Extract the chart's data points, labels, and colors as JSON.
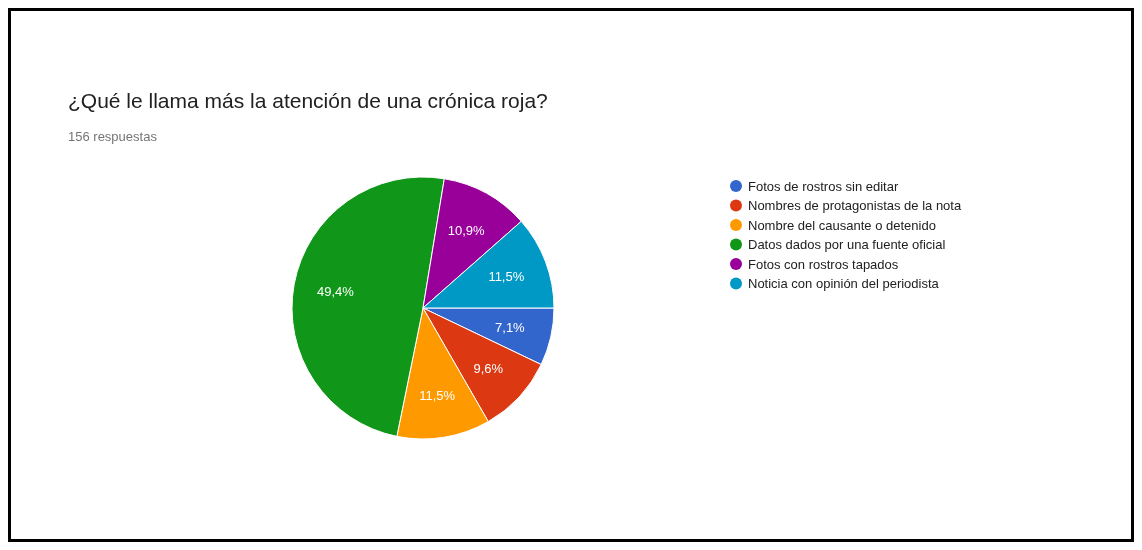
{
  "chart_data": {
    "type": "pie",
    "title": "¿Qué le llama más la atención de una crónica roja?",
    "subtitle": "156 respuestas",
    "categories": [
      "Fotos de rostros sin editar",
      "Nombres de protagonistas de la nota",
      "Nombre del causante o detenido",
      "Datos dados por una fuente oficial",
      "Fotos con rostros tapados",
      "Noticia con opinión del periodista"
    ],
    "values": [
      7.1,
      9.6,
      11.5,
      49.4,
      10.9,
      11.5
    ],
    "value_labels": [
      "7,1%",
      "9,6%",
      "11,5%",
      "49,4%",
      "10,9%",
      "11,5%"
    ],
    "colors": [
      "#3366cc",
      "#dc3912",
      "#ff9900",
      "#109618",
      "#990099",
      "#0099c6"
    ],
    "legend": "right"
  }
}
